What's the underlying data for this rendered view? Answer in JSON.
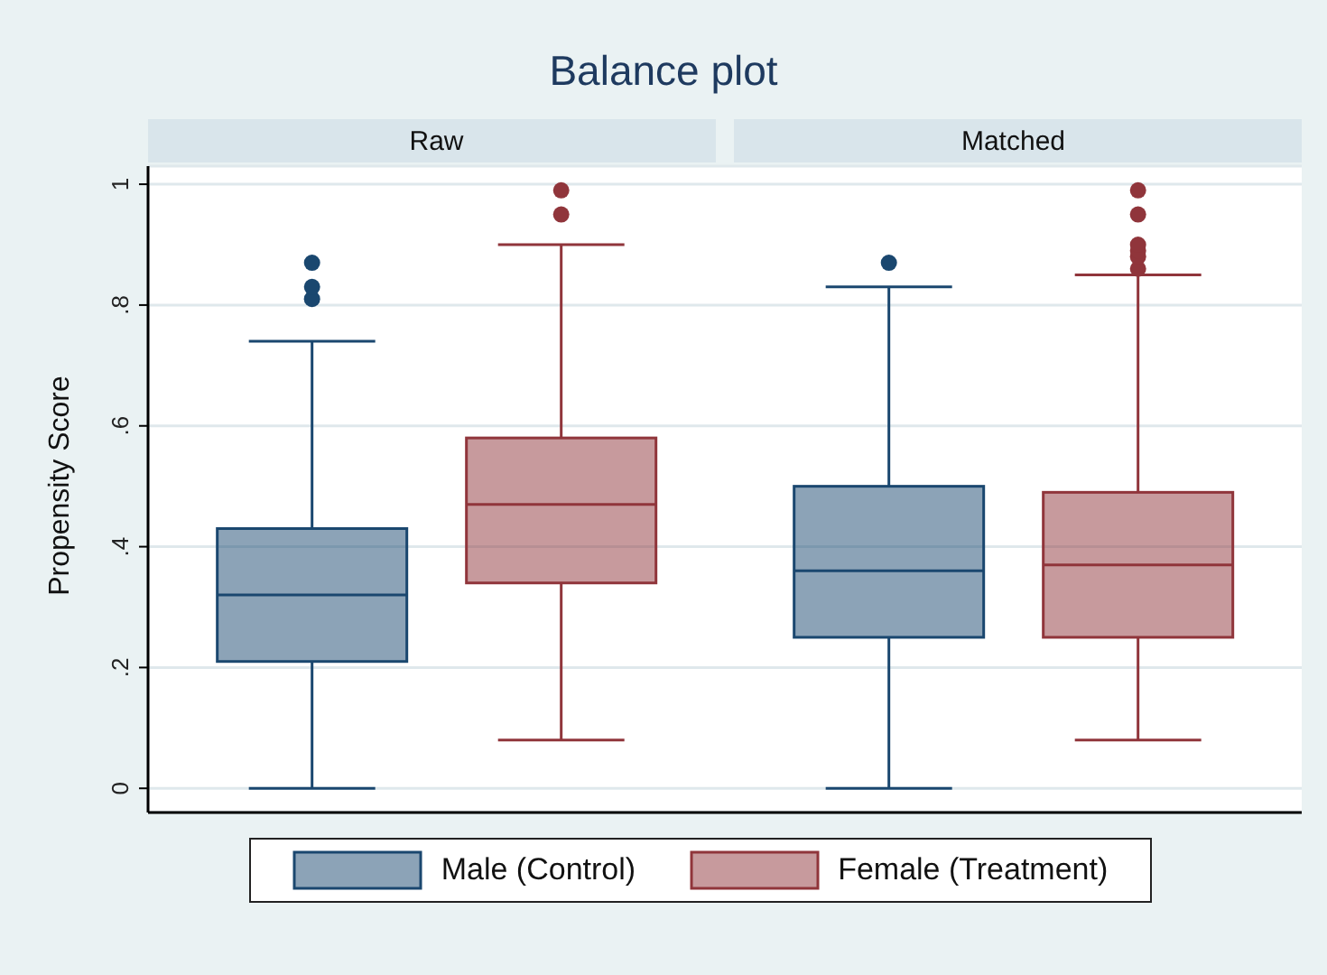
{
  "chart_data": {
    "type": "box",
    "title": "Balance plot",
    "ylabel": "Propensity Score",
    "categories": [
      "Raw",
      "Matched"
    ],
    "ylim": [
      -0.04,
      1.03
    ],
    "yticks": [
      0,
      {
        "value": 0.2,
        "label": ".2"
      },
      {
        "value": 0.4,
        "label": ".4"
      },
      {
        "value": 0.6,
        "label": ".6"
      },
      {
        "value": 0.8,
        "label": ".8"
      },
      1
    ],
    "grid": "y",
    "legend": "bottom",
    "series": [
      {
        "name": "Male (Control)",
        "color": "#1a476f",
        "boxes": [
          {
            "low": 0,
            "q1": 0.21,
            "median": 0.32,
            "q3": 0.43,
            "high": 0.74,
            "outliers": [
              0.81,
              0.83,
              0.87
            ]
          },
          {
            "low": 0,
            "q1": 0.25,
            "median": 0.36,
            "q3": 0.5,
            "high": 0.83,
            "outliers": [
              0.87
            ]
          }
        ]
      },
      {
        "name": "Female (Treatment)",
        "color": "#90353b",
        "boxes": [
          {
            "low": 0.08,
            "q1": 0.34,
            "median": 0.47,
            "q3": 0.58,
            "high": 0.9,
            "outliers": [
              0.95,
              0.99
            ]
          },
          {
            "low": 0.08,
            "q1": 0.25,
            "median": 0.37,
            "q3": 0.49,
            "high": 0.85,
            "outliers": [
              0.86,
              0.88,
              0.89,
              0.9,
              0.95,
              0.99
            ]
          }
        ]
      }
    ]
  }
}
